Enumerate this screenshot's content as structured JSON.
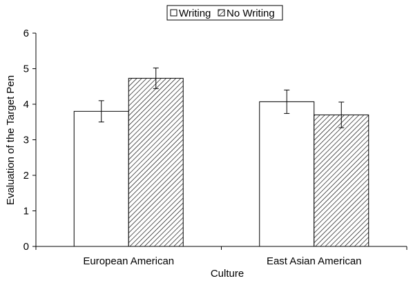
{
  "chart_data": {
    "type": "bar",
    "title": "",
    "xlabel": "Culture",
    "ylabel": "Evaluation of the Target Pen",
    "ylim": [
      0,
      6
    ],
    "yticks": [
      "0",
      "1",
      "2",
      "3",
      "4",
      "5",
      "6"
    ],
    "categories": [
      "European American",
      "East Asian American"
    ],
    "series": [
      {
        "name": "Writing",
        "fill": "plain",
        "values": [
          3.8,
          4.07
        ],
        "error": [
          0.3,
          0.33
        ]
      },
      {
        "name": "No Writing",
        "fill": "hatched",
        "values": [
          4.73,
          3.7
        ],
        "error": [
          0.29,
          0.36
        ]
      }
    ],
    "legend_placement": "top-center",
    "grid": false,
    "error_bars": true,
    "colors": {
      "bar_fill": "#ffffff",
      "stroke": "#000000",
      "hatch": "#000000"
    }
  }
}
